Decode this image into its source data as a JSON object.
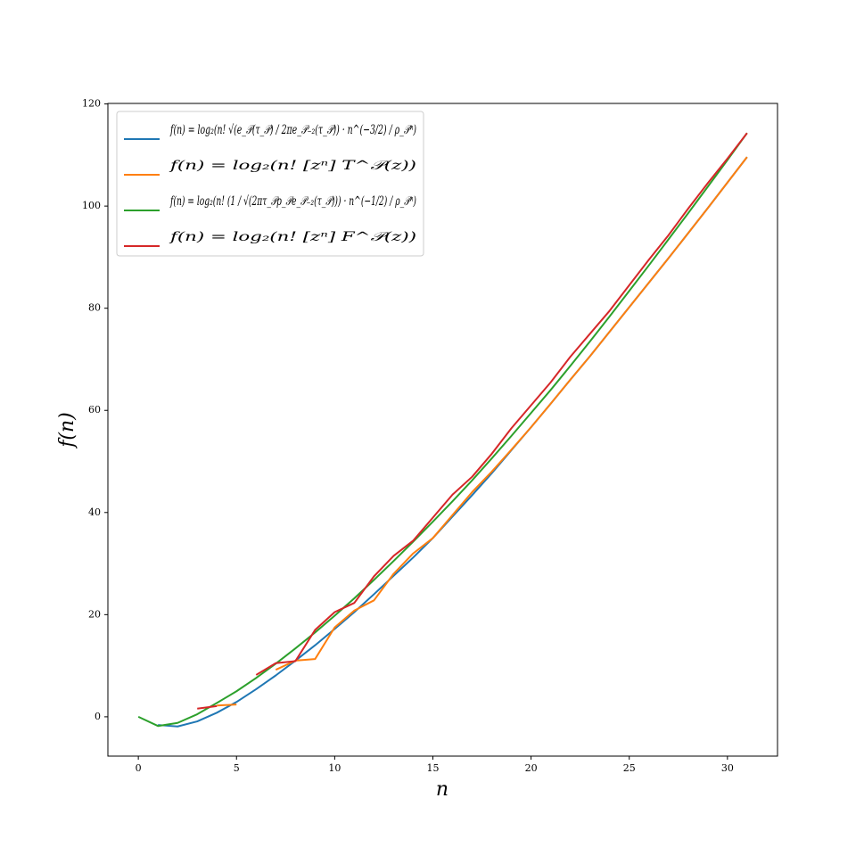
{
  "chart_data": {
    "type": "line",
    "xlabel": "n",
    "ylabel": "f(n)",
    "x": [
      0,
      1,
      2,
      3,
      4,
      5,
      6,
      7,
      8,
      9,
      10,
      11,
      12,
      13,
      14,
      15,
      16,
      17,
      18,
      19,
      20,
      21,
      22,
      23,
      24,
      25,
      26,
      27,
      28,
      29,
      30,
      31
    ],
    "xlim": [
      -1.55,
      32.55
    ],
    "xticks": [
      0,
      5,
      10,
      15,
      20,
      25,
      30
    ],
    "ylim": [
      -7.7,
      120.1
    ],
    "yticks": [
      0,
      20,
      40,
      60,
      80,
      100,
      120
    ],
    "legend": "upper left",
    "series": [
      {
        "name": "f(n) = log₂(n! √(e_𝒫(τ_𝒫) / 2πe_𝒫₋₂(τ_𝒫)) · n^(−3/2) / ρ_𝒫ⁿ)",
        "color": "#1f77b4",
        "values": [
          null,
          -1.6,
          -1.9,
          -0.9,
          0.8,
          2.9,
          5.4,
          8.1,
          11,
          14,
          17.2,
          20.5,
          24,
          27.6,
          31.2,
          35,
          39.2,
          43.4,
          47.7,
          52.2,
          56.7,
          61.3,
          66,
          70.6,
          75.4,
          80.2,
          85,
          89.8,
          94.7,
          99.6,
          104.6,
          109.6
        ]
      },
      {
        "name": "f(n) = log₂(n! [zⁿ] T^𝒫(z))",
        "color": "#ff7f0e",
        "values": [
          null,
          null,
          null,
          null,
          2.2,
          2.4,
          null,
          9.2,
          11,
          11.3,
          17.5,
          20.8,
          22.8,
          28,
          32,
          35,
          39.5,
          44,
          48,
          52.3,
          56.7,
          61.3,
          66,
          70.6,
          75.4,
          80.2,
          85,
          89.8,
          94.7,
          99.6,
          104.6,
          109.6
        ]
      },
      {
        "name": "f(n) = log₂(n! (1 / √(2πτ_𝒫ρ_𝒫e_𝒫₋₂(τ_𝒫))) · n^(−1/2) / ρ_𝒫ⁿ)",
        "color": "#2ca02c",
        "values": [
          0,
          -1.8,
          -1.2,
          0.5,
          2.7,
          5,
          7.6,
          10.4,
          13.4,
          16.5,
          19.8,
          23.2,
          26.8,
          30.5,
          34.3,
          38.2,
          42.2,
          46.3,
          50.6,
          55,
          59.5,
          64,
          68.7,
          73.5,
          78.4,
          83.4,
          88.4,
          93.5,
          98.6,
          103.8,
          109,
          114.3
        ]
      },
      {
        "name": "f(n) = log₂(n! [zⁿ] F^𝒫(z))",
        "color": "#d62728",
        "values": [
          null,
          null,
          null,
          1.6,
          2.1,
          null,
          8.2,
          10.5,
          10.9,
          17,
          20.5,
          22.3,
          27.5,
          31.5,
          34.5,
          39,
          43.5,
          47,
          51.5,
          56.5,
          61,
          65.5,
          70.5,
          75,
          79.5,
          84.5,
          89.5,
          94.3,
          99.5,
          104.5,
          109.3,
          114.3
        ]
      }
    ]
  }
}
